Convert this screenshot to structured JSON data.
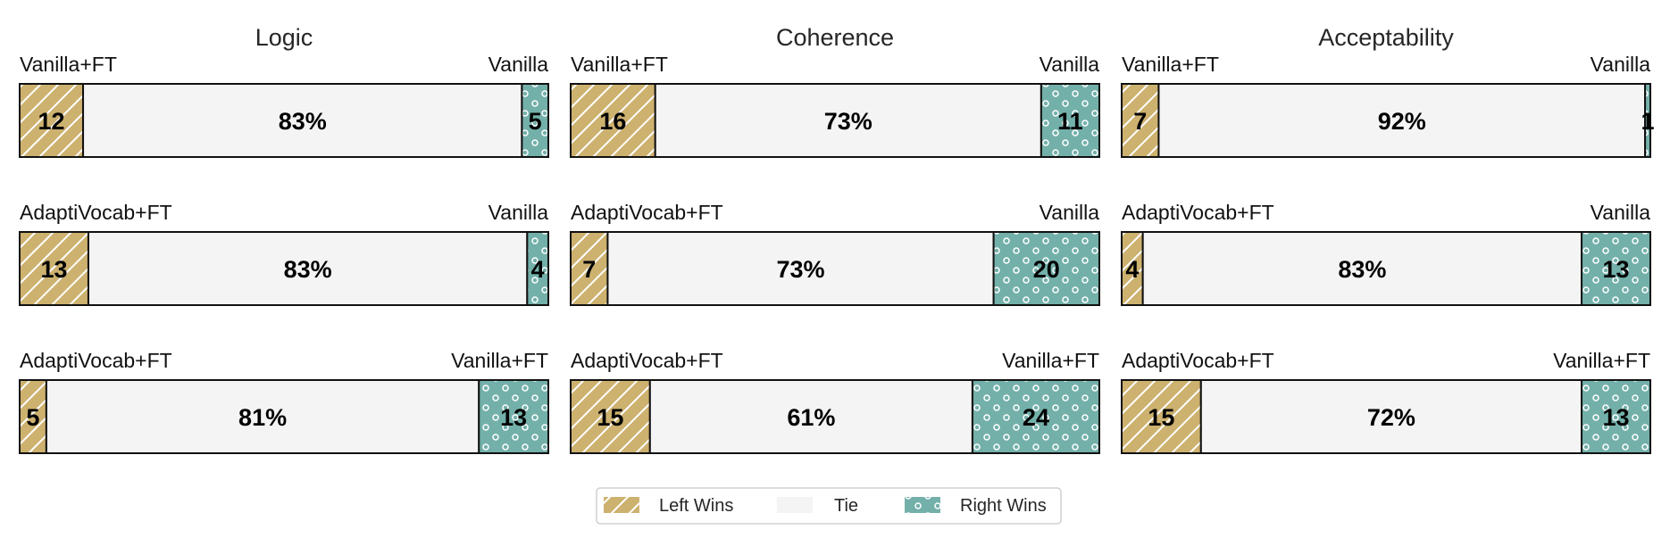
{
  "chart_data": {
    "type": "bar",
    "orientation": "horizontal-stacked",
    "colors": {
      "left": "#cdb16f",
      "tie": "#f4f4f4",
      "right": "#73b0aa",
      "edge": "#111111"
    },
    "legend": {
      "placement": "bottom-center",
      "entries": [
        {
          "key": "left",
          "label": "Left Wins"
        },
        {
          "key": "tie",
          "label": "Tie"
        },
        {
          "key": "right",
          "label": "Right Wins"
        }
      ]
    },
    "panels": [
      {
        "title": "Logic",
        "rows": [
          {
            "left_name": "Vanilla+FT",
            "right_name": "Vanilla",
            "left": 12,
            "tie": 83,
            "right": 5,
            "left_text": "12",
            "tie_text": "83%",
            "right_text": "5"
          },
          {
            "left_name": "AdaptiVocab+FT",
            "right_name": "Vanilla",
            "left": 13,
            "tie": 83,
            "right": 4,
            "left_text": "13",
            "tie_text": "83%",
            "right_text": "4"
          },
          {
            "left_name": "AdaptiVocab+FT",
            "right_name": "Vanilla+FT",
            "left": 5,
            "tie": 81,
            "right": 13,
            "left_text": "5",
            "tie_text": "81%",
            "right_text": "13"
          }
        ]
      },
      {
        "title": "Coherence",
        "rows": [
          {
            "left_name": "Vanilla+FT",
            "right_name": "Vanilla",
            "left": 16,
            "tie": 73,
            "right": 11,
            "left_text": "16",
            "tie_text": "73%",
            "right_text": "11"
          },
          {
            "left_name": "AdaptiVocab+FT",
            "right_name": "Vanilla",
            "left": 7,
            "tie": 73,
            "right": 20,
            "left_text": "7",
            "tie_text": "73%",
            "right_text": "20"
          },
          {
            "left_name": "AdaptiVocab+FT",
            "right_name": "Vanilla+FT",
            "left": 15,
            "tie": 61,
            "right": 24,
            "left_text": "15",
            "tie_text": "61%",
            "right_text": "24"
          }
        ]
      },
      {
        "title": "Acceptability",
        "rows": [
          {
            "left_name": "Vanilla+FT",
            "right_name": "Vanilla",
            "left": 7,
            "tie": 92,
            "right": 1,
            "left_text": "7",
            "tie_text": "92%",
            "right_text": "1"
          },
          {
            "left_name": "AdaptiVocab+FT",
            "right_name": "Vanilla",
            "left": 4,
            "tie": 83,
            "right": 13,
            "left_text": "4",
            "tie_text": "83%",
            "right_text": "13"
          },
          {
            "left_name": "AdaptiVocab+FT",
            "right_name": "Vanilla+FT",
            "left": 15,
            "tie": 72,
            "right": 13,
            "left_text": "15",
            "tie_text": "72%",
            "right_text": "13"
          }
        ]
      }
    ]
  }
}
